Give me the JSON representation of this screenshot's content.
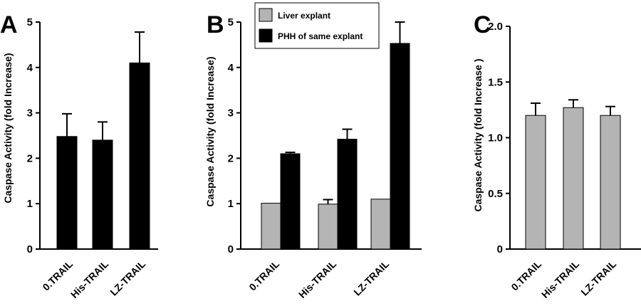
{
  "chart_data": [
    {
      "panel": "A",
      "type": "bar",
      "ylabel": "Caspase  Activity  (fold Increase)",
      "ylim": [
        0,
        5
      ],
      "yticks": [
        "0",
        "1",
        "2",
        "3",
        "4",
        "5"
      ],
      "categories": [
        "0.TRAIL",
        "His-TRAIL",
        "LZ-TRAIL"
      ],
      "series": [
        {
          "color": "#000000",
          "values": [
            2.48,
            2.4,
            4.1
          ],
          "errors": [
            0.5,
            0.4,
            0.68
          ]
        }
      ]
    },
    {
      "panel": "B",
      "type": "bar",
      "ylabel": "Caspase  Activity   (fold Increase)",
      "ylim": [
        0,
        5
      ],
      "yticks": [
        "0",
        "1",
        "2",
        "3",
        "4",
        "5"
      ],
      "categories": [
        "0.TRAIL",
        "His-TRAIL",
        "LZ-TRAIL"
      ],
      "legend_position": "top-left",
      "series": [
        {
          "name": "Liver explant",
          "color": "#b4b4b4",
          "values": [
            1.01,
            0.99,
            1.1
          ],
          "errors": [
            0,
            0.1,
            0
          ]
        },
        {
          "name": "PHH of same explant",
          "color": "#000000",
          "values": [
            2.1,
            2.42,
            4.53
          ],
          "errors": [
            0.03,
            0.22,
            0.47
          ]
        }
      ]
    },
    {
      "panel": "C",
      "type": "bar",
      "ylabel": "Caspase  Activity   (fold Increase )",
      "ylim": [
        0,
        2
      ],
      "yticks": [
        "0",
        "0.5",
        "1.0",
        "1.5",
        "2.0"
      ],
      "categories": [
        "0.TRAIL",
        "His-TRAIL",
        "LZ-TRAIL"
      ],
      "series": [
        {
          "color": "#b4b4b4",
          "values": [
            1.2,
            1.27,
            1.2
          ],
          "errors": [
            0.11,
            0.07,
            0.08
          ]
        }
      ]
    }
  ]
}
